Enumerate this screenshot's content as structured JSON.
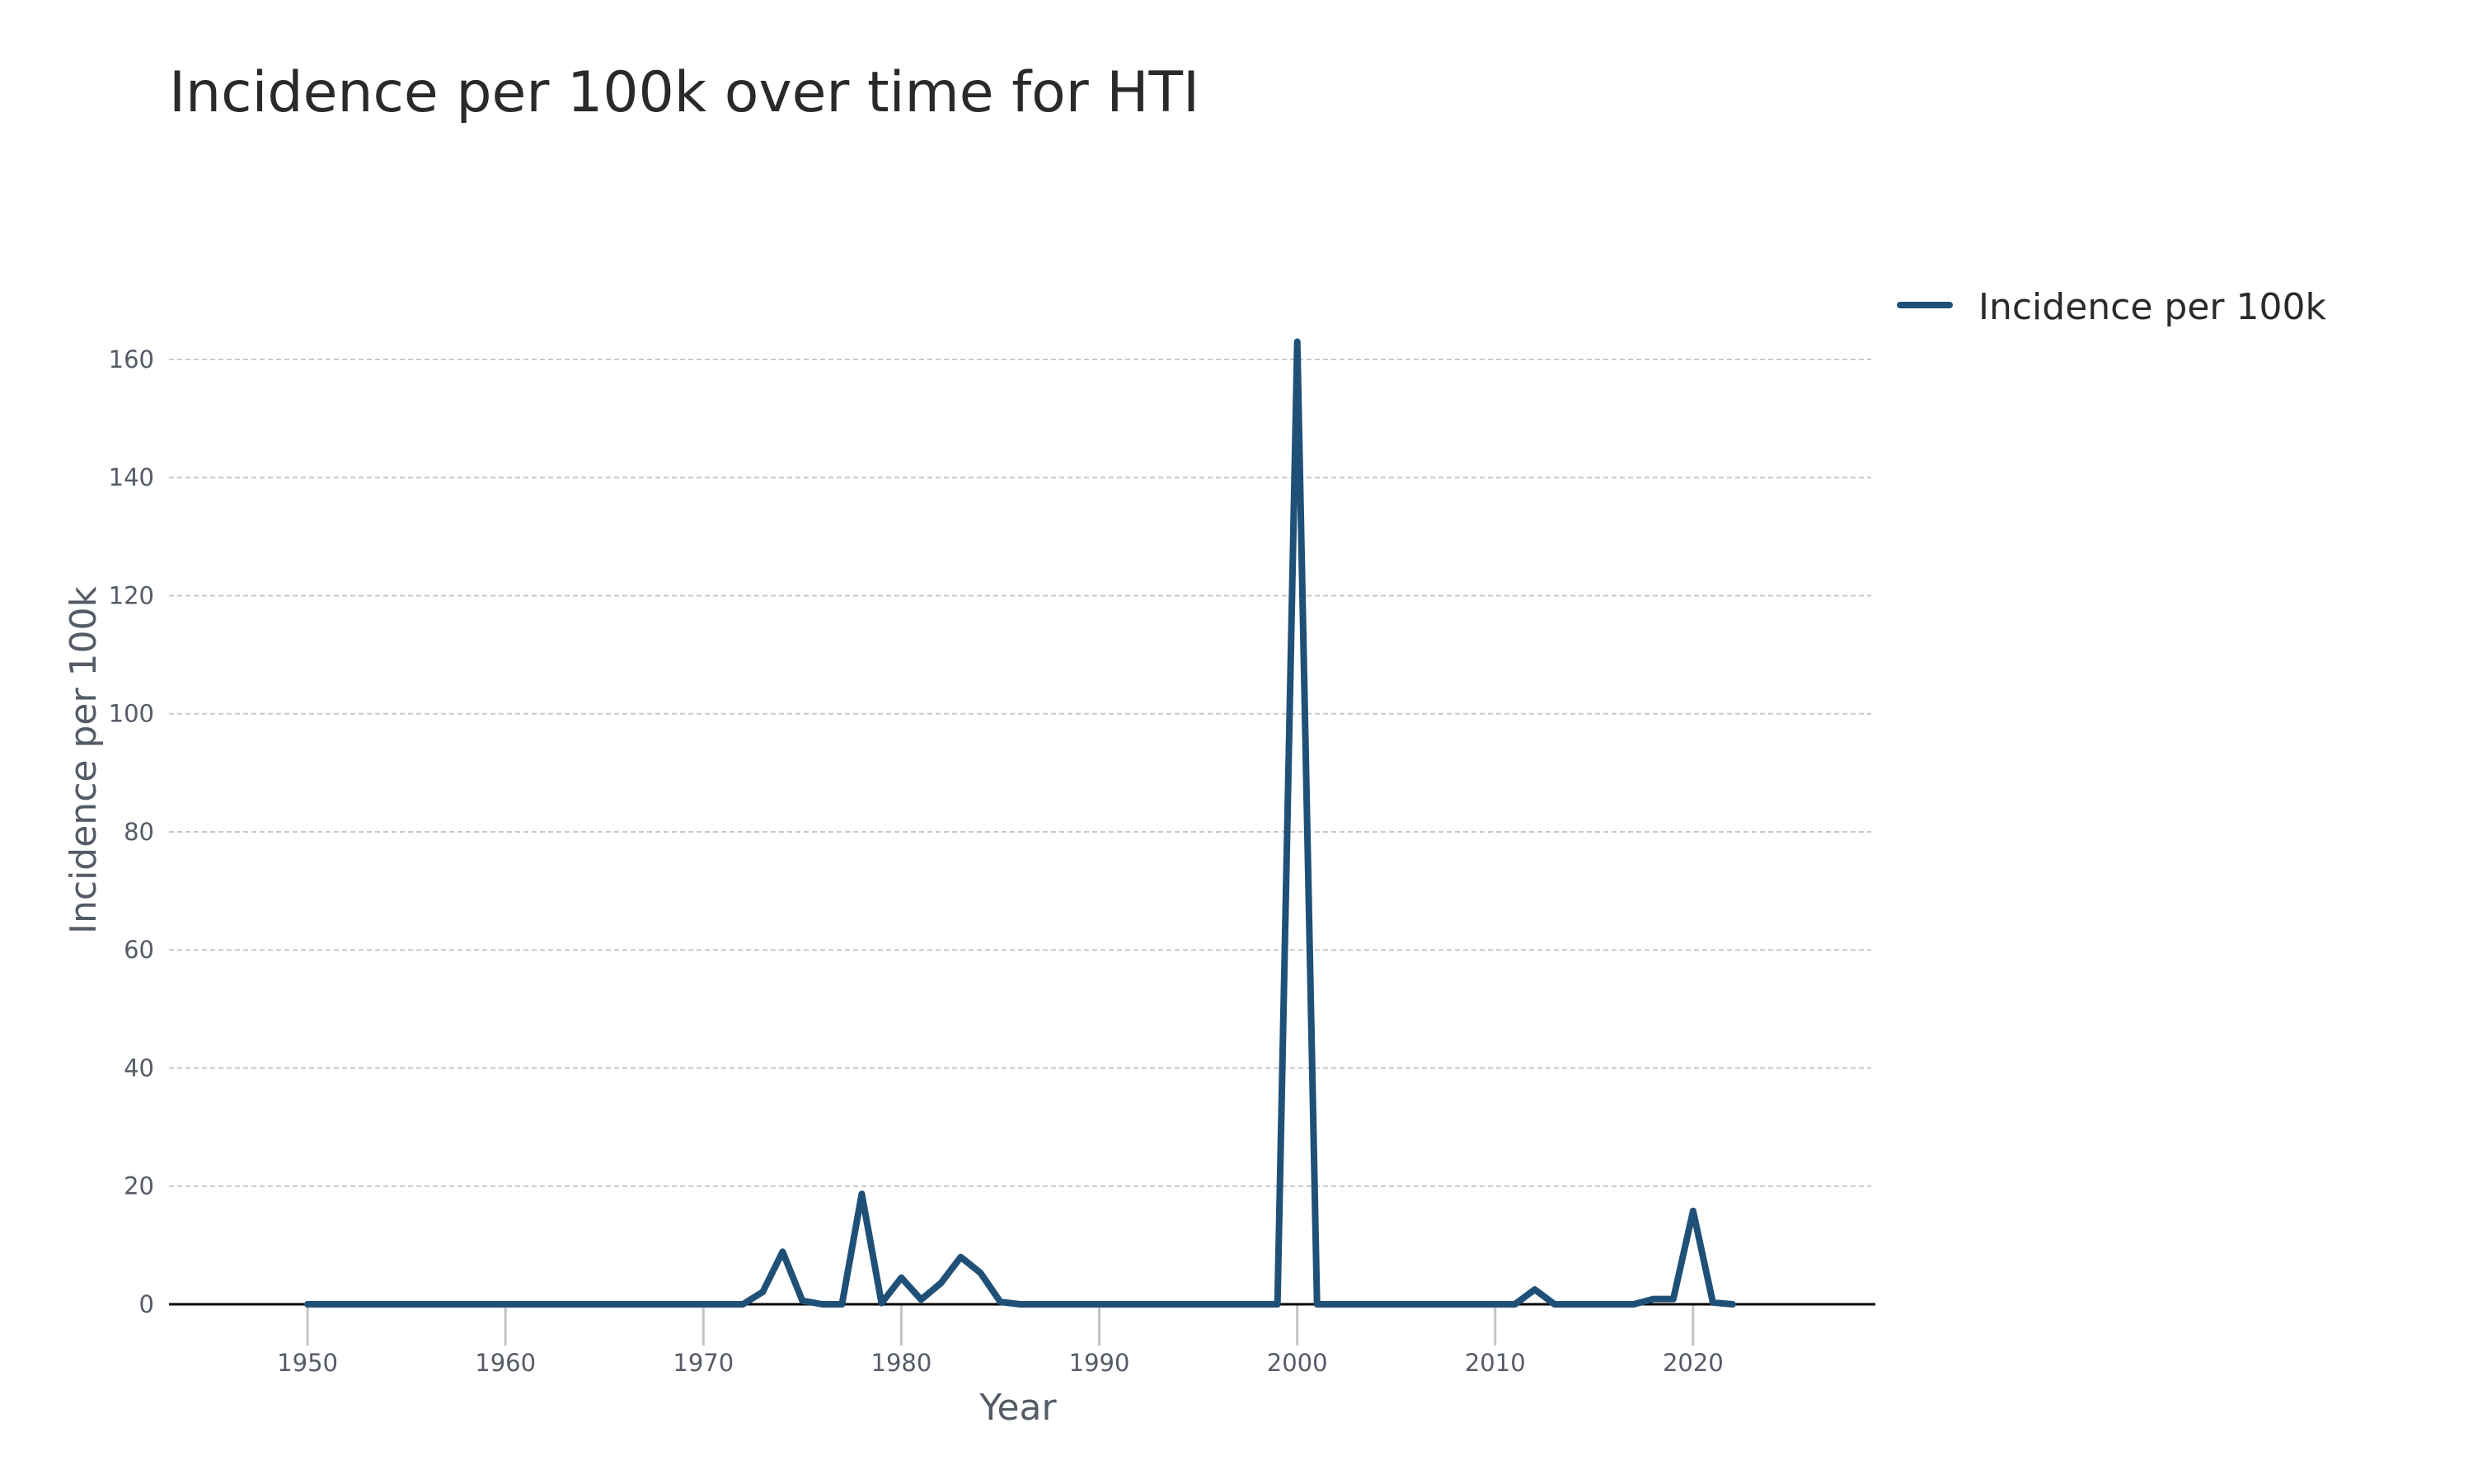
{
  "colors": {
    "line": "#1f5078",
    "grid": "#c8c8c8",
    "axis": "#000000",
    "text": "#2a2a2a",
    "muted_text": "#555b66"
  },
  "chart_data": {
    "type": "line",
    "title": "Incidence per 100k over time for HTI",
    "xlabel": "Year",
    "ylabel": "Incidence per 100k",
    "xlim": [
      1943,
      2029
    ],
    "ylim": [
      0,
      172
    ],
    "x_ticks": [
      1950,
      1960,
      1970,
      1980,
      1990,
      2000,
      2010,
      2020
    ],
    "y_ticks": [
      0,
      20,
      40,
      60,
      80,
      100,
      120,
      140,
      160
    ],
    "grid": true,
    "legend_position": "top-right",
    "series": [
      {
        "name": "Incidence per 100k",
        "color": "#1f5078",
        "x": [
          1950,
          1951,
          1952,
          1953,
          1954,
          1955,
          1956,
          1957,
          1958,
          1959,
          1960,
          1961,
          1962,
          1963,
          1964,
          1965,
          1966,
          1967,
          1968,
          1969,
          1970,
          1971,
          1972,
          1973,
          1974,
          1975,
          1976,
          1977,
          1978,
          1979,
          1980,
          1981,
          1982,
          1983,
          1984,
          1985,
          1986,
          1987,
          1988,
          1989,
          1990,
          1991,
          1992,
          1993,
          1994,
          1995,
          1996,
          1997,
          1998,
          1999,
          2000,
          2001,
          2002,
          2003,
          2004,
          2005,
          2006,
          2007,
          2008,
          2009,
          2010,
          2011,
          2012,
          2013,
          2014,
          2015,
          2016,
          2017,
          2018,
          2019,
          2020,
          2021,
          2022
        ],
        "values": [
          0,
          0,
          0,
          0,
          0,
          0,
          0,
          0,
          0,
          0,
          0,
          0,
          0,
          0,
          0,
          0,
          0,
          0,
          0,
          0,
          0,
          0,
          0,
          2.1,
          8.9,
          0.6,
          0,
          0,
          18.7,
          0.2,
          4.5,
          0.8,
          3.6,
          8,
          5.3,
          0.4,
          0,
          0,
          0,
          0,
          0,
          0,
          0,
          0,
          0,
          0,
          0,
          0,
          0,
          0,
          163,
          0,
          0,
          0,
          0,
          0,
          0,
          0,
          0,
          0,
          0,
          0,
          2.5,
          0,
          0,
          0,
          0,
          0,
          0.9,
          0.9,
          15.8,
          0.3,
          0
        ]
      }
    ]
  }
}
